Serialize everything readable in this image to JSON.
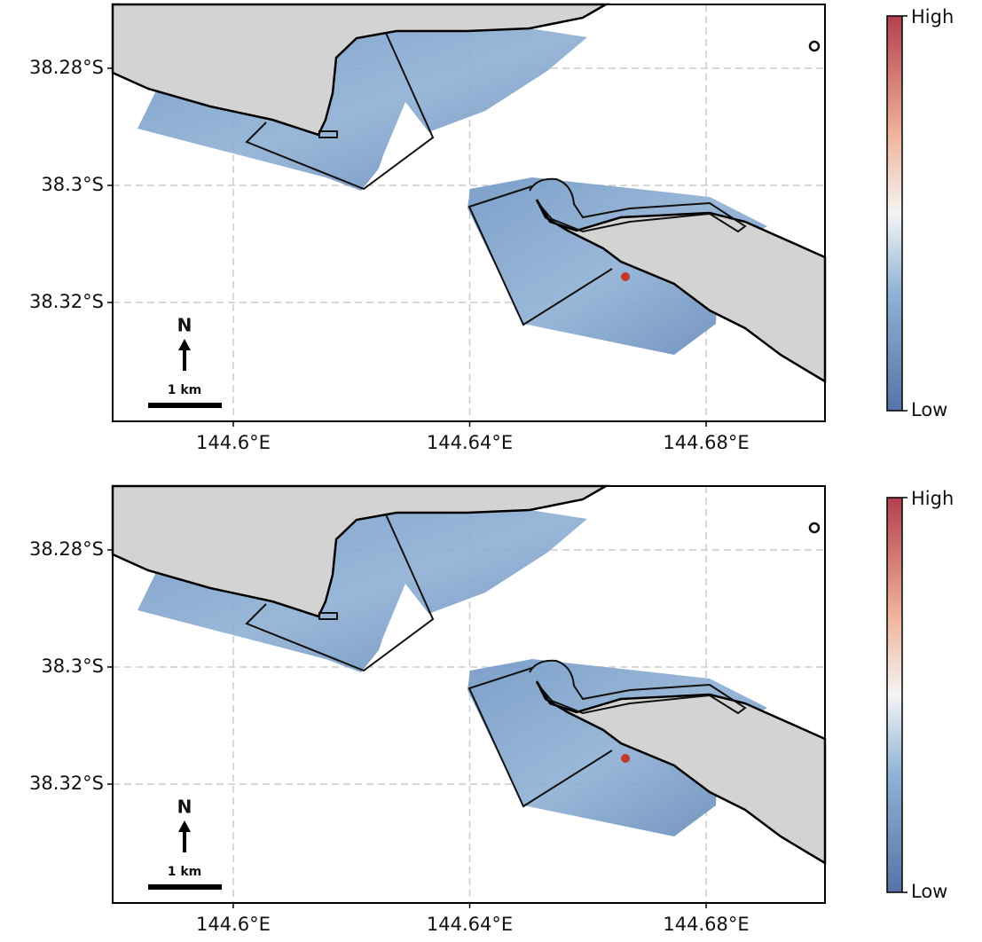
{
  "panels": [
    {
      "xlim": [
        144.5796,
        144.7001
      ],
      "ylim": [
        -38.3403,
        -38.2691
      ],
      "x_ticks": [
        {
          "value": 144.6,
          "label": "144.6°E"
        },
        {
          "value": 144.64,
          "label": "144.64°E"
        },
        {
          "value": 144.68,
          "label": "144.68°E"
        }
      ],
      "y_ticks": [
        {
          "value": -38.28,
          "label": "38.28°S"
        },
        {
          "value": -38.3,
          "label": "38.3°S"
        },
        {
          "value": -38.32,
          "label": "38.32°S"
        }
      ],
      "north": "N",
      "scale": "1 km",
      "colorbar": {
        "high": "High",
        "low": "Low"
      }
    },
    {
      "xlim": [
        144.5796,
        144.7001
      ],
      "ylim": [
        -38.3403,
        -38.2691
      ],
      "x_ticks": [
        {
          "value": 144.6,
          "label": "144.6°E"
        },
        {
          "value": 144.64,
          "label": "144.64°E"
        },
        {
          "value": 144.68,
          "label": "144.68°E"
        }
      ],
      "y_ticks": [
        {
          "value": -38.28,
          "label": "38.28°S"
        },
        {
          "value": -38.3,
          "label": "38.3°S"
        },
        {
          "value": -38.32,
          "label": "38.32°S"
        }
      ],
      "north": "N",
      "scale": "1 km",
      "colorbar": {
        "high": "High",
        "low": "Low"
      }
    }
  ]
}
